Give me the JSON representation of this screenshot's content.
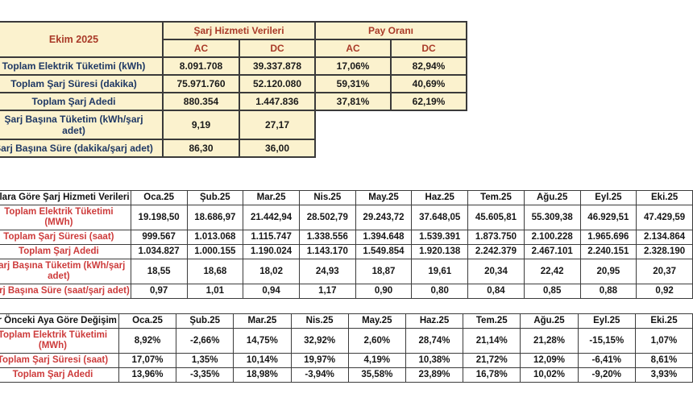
{
  "colors": {
    "table_background": "#FBF2CE",
    "summary_header_red": "#A93A28",
    "summary_label_navy": "#1F3864",
    "monthly_label_red": "#CD3B3B",
    "value_black": "#161616",
    "border_dark": "#3a3a3a",
    "page_background": "#ffffff"
  },
  "summary_table": {
    "title": "Ekim 2025",
    "groups": [
      "Şarj Hizmeti Verileri",
      "Pay Oranı"
    ],
    "subheaders": [
      "AC",
      "DC",
      "AC",
      "DC"
    ],
    "rows": [
      {
        "label": "Toplam Elektrik Tüketimi (kWh)",
        "values": [
          "8.091.708",
          "39.337.878",
          "17,06%",
          "82,94%"
        ]
      },
      {
        "label": "Toplam Şarj Süresi (dakika)",
        "values": [
          "75.971.760",
          "52.120.080",
          "59,31%",
          "40,69%"
        ]
      },
      {
        "label": "Toplam Şarj Adedi",
        "values": [
          "880.354",
          "1.447.836",
          "37,81%",
          "62,19%"
        ]
      },
      {
        "label": "Şarj Başına Tüketim (kWh/şarj\nadet)",
        "values": [
          "9,19",
          "27,17",
          null,
          null
        ]
      },
      {
        "label": "Şarj Başına Süre (dakika/şarj adet)",
        "values": [
          "86,30",
          "36,00",
          null,
          null
        ]
      }
    ]
  },
  "monthly_table": {
    "title": "Aylara Göre Şarj Hizmeti Verileri",
    "months": [
      "Oca.25",
      "Şub.25",
      "Mar.25",
      "Nis.25",
      "May.25",
      "Haz.25",
      "Tem.25",
      "Ağu.25",
      "Eyl.25",
      "Eki.25"
    ],
    "rows": [
      {
        "label": "Toplam Elektrik Tüketimi\n(MWh)",
        "values": [
          "19.198,50",
          "18.686,97",
          "21.442,94",
          "28.502,79",
          "29.243,72",
          "37.648,05",
          "45.605,81",
          "55.309,38",
          "46.929,51",
          "47.429,59"
        ]
      },
      {
        "label": "Toplam Şarj Süresi (saat)",
        "values": [
          "999.567",
          "1.013.068",
          "1.115.747",
          "1.338.556",
          "1.394.648",
          "1.539.391",
          "1.873.750",
          "2.100.228",
          "1.965.696",
          "2.134.864"
        ]
      },
      {
        "label": "Toplam Şarj Adedi",
        "values": [
          "1.034.827",
          "1.000.155",
          "1.190.024",
          "1.143.170",
          "1.549.854",
          "1.920.138",
          "2.242.379",
          "2.467.101",
          "2.240.151",
          "2.328.190"
        ]
      },
      {
        "label": "Şarj Başına Tüketim (kWh/şarj\nadet)",
        "values": [
          "18,55",
          "18,68",
          "18,02",
          "24,93",
          "18,87",
          "19,61",
          "20,34",
          "22,42",
          "20,95",
          "20,37"
        ]
      },
      {
        "label": "Şarj Başına Süre (saat/şarj adet)",
        "values": [
          "0,97",
          "1,01",
          "0,94",
          "1,17",
          "0,90",
          "0,80",
          "0,84",
          "0,85",
          "0,88",
          "0,92"
        ]
      }
    ]
  },
  "change_table": {
    "title": "Bir Önceki Aya Göre Değişim",
    "months": [
      "Oca.25",
      "Şub.25",
      "Mar.25",
      "Nis.25",
      "May.25",
      "Haz.25",
      "Tem.25",
      "Ağu.25",
      "Eyl.25",
      "Eki.25"
    ],
    "rows": [
      {
        "label": "Toplam Elektrik Tüketimi\n(MWh)",
        "values": [
          "8,92%",
          "-2,66%",
          "14,75%",
          "32,92%",
          "2,60%",
          "28,74%",
          "21,14%",
          "21,28%",
          "-15,15%",
          "1,07%"
        ]
      },
      {
        "label": "Toplam Şarj Süresi (saat)",
        "values": [
          "17,07%",
          "1,35%",
          "10,14%",
          "19,97%",
          "4,19%",
          "10,38%",
          "21,72%",
          "12,09%",
          "-6,41%",
          "8,61%"
        ]
      },
      {
        "label": "Toplam Şarj Adedi",
        "values": [
          "13,96%",
          "-3,35%",
          "18,98%",
          "-3,94%",
          "35,58%",
          "23,89%",
          "16,78%",
          "10,02%",
          "-9,20%",
          "3,93%"
        ]
      }
    ]
  }
}
